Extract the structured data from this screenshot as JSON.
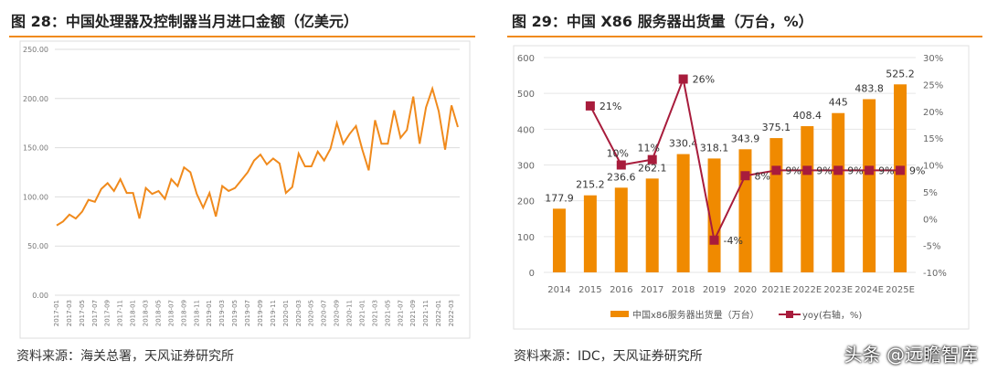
{
  "left": {
    "title": "图 28：中国处理器及控制器当月进口金额（亿美元）",
    "source": "资料来源：海关总署，天风证券研究所"
  },
  "right": {
    "title": "图 29：中国 X86 服务器出货量（万台，%）",
    "source": "资料来源：IDC，天风证券研究所"
  },
  "watermark": "头条 @远瞻智库",
  "chart_data": [
    {
      "type": "line",
      "ylim": [
        0,
        250
      ],
      "yticks": [
        "0.00",
        "50.00",
        "100.00",
        "150.00",
        "200.00",
        "250.00"
      ],
      "color": "#f08a1c",
      "grid": true,
      "x_start": "2017-01",
      "values": [
        71,
        75,
        82,
        78,
        85,
        97,
        95,
        108,
        114,
        106,
        118,
        104,
        104,
        78,
        109,
        103,
        106,
        98,
        118,
        111,
        130,
        125,
        103,
        89,
        104,
        80,
        111,
        106,
        109,
        117,
        125,
        137,
        143,
        133,
        139,
        134,
        104,
        110,
        144,
        131,
        131,
        146,
        137,
        149,
        175,
        154,
        164,
        172,
        148,
        127,
        178,
        154,
        154,
        188,
        160,
        168,
        202,
        154,
        191,
        210,
        187,
        148,
        193,
        171
      ]
    },
    {
      "type": "bar+line",
      "categories": [
        "2014",
        "2015",
        "2016",
        "2017",
        "2018",
        "2019",
        "2020",
        "2021E",
        "2022E",
        "2023E",
        "2024E",
        "2025E"
      ],
      "ylim": [
        0,
        600
      ],
      "yticks": [
        "0",
        "100",
        "200",
        "300",
        "400",
        "500",
        "600"
      ],
      "y2lim": [
        -10,
        30
      ],
      "y2ticks": [
        "-10%",
        "-5%",
        "0%",
        "5%",
        "10%",
        "15%",
        "20%",
        "25%",
        "30%"
      ],
      "grid": true,
      "legend": "bottom",
      "series": [
        {
          "name": "中国x86服务器出货量（万台）",
          "type": "bar",
          "color": "#f08a00",
          "values": [
            177.9,
            215.2,
            236.6,
            262.1,
            330.4,
            318.1,
            343.9,
            375.1,
            408.4,
            445,
            483.8,
            525.2
          ],
          "labels": [
            "177.9",
            "215.2",
            "236.6",
            "262.1",
            "330.4",
            "318.1",
            "343.9",
            "375.1",
            "408.4",
            "445",
            "483.8",
            "525.2"
          ]
        },
        {
          "name": "yoy(右轴，%)",
          "type": "line",
          "axis": "right",
          "color": "#a81c3c",
          "values": [
            null,
            21,
            10,
            11,
            26,
            -4,
            8,
            9,
            9,
            9,
            9,
            9
          ],
          "labels": [
            "",
            "21%",
            "10%",
            "11%",
            "26%",
            "-4%",
            "8%",
            "9%",
            "9%",
            "9%",
            "9%",
            "9%"
          ]
        }
      ]
    }
  ]
}
